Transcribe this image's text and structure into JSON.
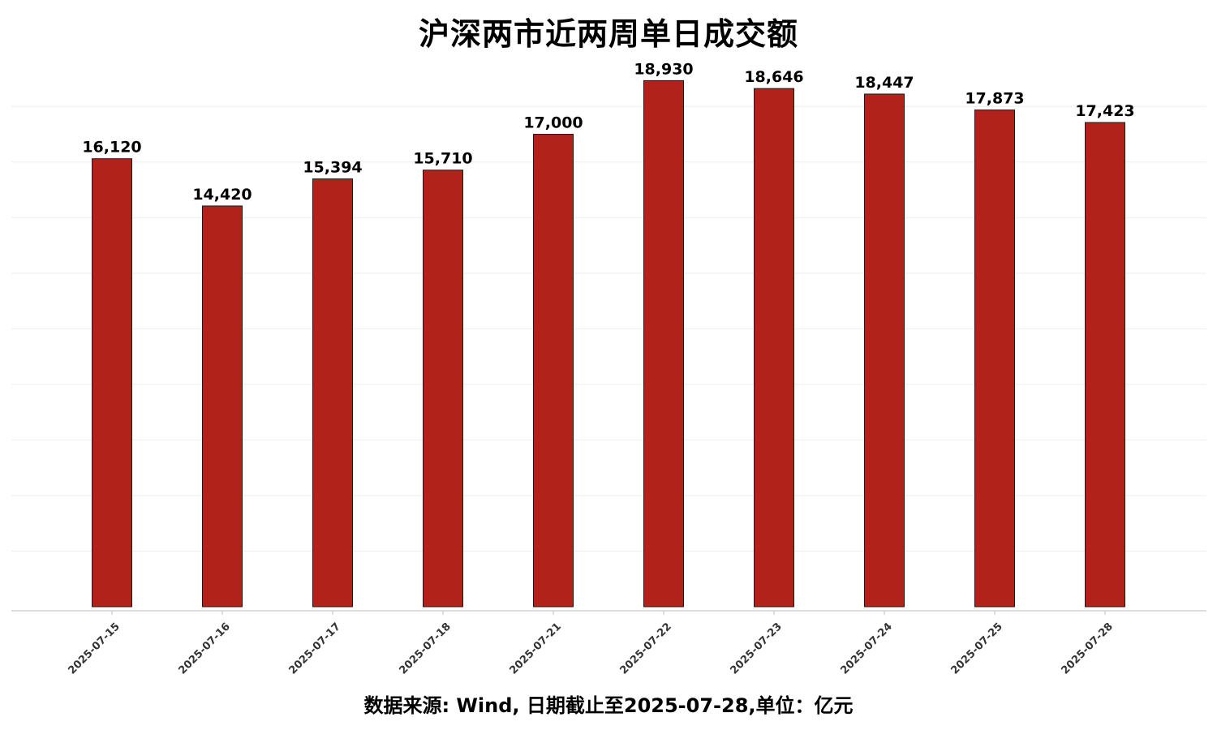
{
  "chart_data": {
    "type": "bar",
    "title": "沪深两市近两周单日成交额",
    "note": "数据来源: Wind, 日期截止至2025-07-28,单位：亿元",
    "categories": [
      "2025-07-15",
      "2025-07-16",
      "2025-07-17",
      "2025-07-18",
      "2025-07-21",
      "2025-07-22",
      "2025-07-23",
      "2025-07-24",
      "2025-07-25",
      "2025-07-28"
    ],
    "values": [
      16120,
      14420,
      15394,
      15710,
      17000,
      18930,
      18646,
      18447,
      17873,
      17423
    ],
    "value_labels": [
      "16,120",
      "14,420",
      "15,394",
      "15,710",
      "17,000",
      "18,930",
      "18,646",
      "18,447",
      "17,873",
      "17,423"
    ],
    "ylim": [
      0,
      19000
    ],
    "grid": true,
    "y_tick_labels_shown": false,
    "legend": "none",
    "colors": {
      "bar_fill": "#B0221A",
      "bar_edge": "#1a1a1a",
      "grid": "#eeeeee",
      "axis": "#bbbbbb"
    }
  }
}
